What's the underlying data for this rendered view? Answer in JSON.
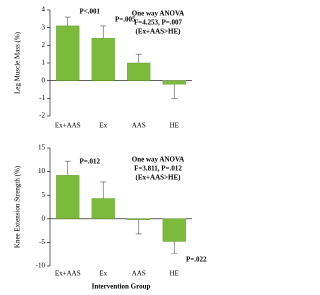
{
  "chart_data": [
    {
      "type": "bar",
      "y_label": "Leg Muscle Mass (%)",
      "categories": [
        "Ex+AAS",
        "Ex",
        "AAS",
        "HE"
      ],
      "values": [
        3.1,
        2.4,
        1.0,
        -0.2
      ],
      "errors": [
        0.5,
        0.7,
        0.5,
        0.8
      ],
      "color": "#7dbb3c",
      "ylim": [
        -2,
        4
      ],
      "yticks": [
        -2,
        -1,
        0,
        1,
        2,
        3,
        4
      ],
      "annotations": [
        "P<.001",
        "P=.005",
        "One way ANOVA",
        "F=4.253, P=.007",
        "(Ex+AAS>HE)"
      ]
    },
    {
      "type": "bar",
      "y_label": "Knee Extension Strength (%)",
      "x_label": "Intervention Group",
      "categories": [
        "Ex+AAS",
        "Ex",
        "AAS",
        "HE"
      ],
      "values": [
        9.2,
        4.3,
        -0.2,
        -4.8
      ],
      "errors": [
        3.0,
        3.5,
        3.0,
        2.5
      ],
      "color": "#7dbb3c",
      "ylim": [
        -10,
        15
      ],
      "yticks": [
        -10,
        -5,
        0,
        5,
        10,
        15
      ],
      "annotations": [
        "P=.012",
        "P=.022",
        "One way ANOVA",
        "F=3.811, P=.012",
        "(Ex+AAS>HE)"
      ]
    }
  ]
}
